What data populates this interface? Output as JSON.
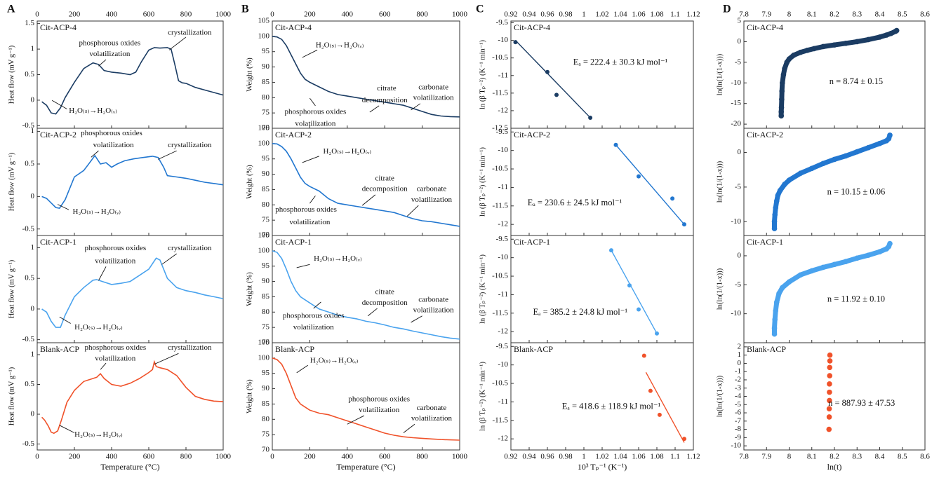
{
  "panel_labels": [
    "A",
    "B",
    "C",
    "D"
  ],
  "chart_data": [
    {
      "type": "line",
      "title": "Cit-ACP-4",
      "ylabel": "Heat flow (mV g⁻¹)",
      "color": "#1b3c63",
      "xlim": [
        0,
        1000
      ],
      "xticks": [
        0,
        200,
        400,
        600,
        800,
        1000
      ],
      "ylim": [
        -0.55,
        1.55
      ],
      "yticks": [
        -0.5,
        0,
        0.5,
        1,
        1.5
      ],
      "x": [
        25,
        50,
        75,
        100,
        125,
        150,
        200,
        250,
        300,
        330,
        360,
        400,
        450,
        500,
        530,
        560,
        600,
        630,
        660,
        700,
        720,
        740,
        760,
        780,
        800,
        850,
        900,
        950,
        1000
      ],
      "y": [
        -0.03,
        -0.1,
        -0.25,
        -0.27,
        -0.15,
        0.05,
        0.35,
        0.62,
        0.73,
        0.7,
        0.58,
        0.55,
        0.53,
        0.5,
        0.55,
        0.75,
        0.98,
        1.03,
        1.02,
        1.03,
        1.0,
        0.7,
        0.38,
        0.34,
        0.33,
        0.25,
        0.2,
        0.15,
        0.1
      ],
      "annotations": [
        "crystallization",
        "phosphorous oxides",
        "volatilization",
        "H₂O₍ₛ₎→H₂O₍ᵥ₎"
      ]
    },
    {
      "type": "line",
      "title": "Cit-ACP-2",
      "ylabel": "Heat flow (mV g⁻¹)",
      "color": "#2277d0",
      "xlim": [
        0,
        1000
      ],
      "xticks": [
        0,
        200,
        400,
        600,
        800,
        1000
      ],
      "ylim": [
        -0.6,
        1.05
      ],
      "yticks": [
        -0.5,
        0,
        0.5,
        1
      ],
      "x": [
        25,
        50,
        75,
        100,
        120,
        150,
        200,
        250,
        290,
        310,
        340,
        370,
        400,
        430,
        470,
        520,
        570,
        620,
        650,
        680,
        700,
        750,
        800,
        850,
        900,
        950,
        1000
      ],
      "y": [
        0,
        -0.03,
        -0.1,
        -0.17,
        -0.18,
        -0.05,
        0.3,
        0.4,
        0.55,
        0.63,
        0.5,
        0.52,
        0.45,
        0.5,
        0.55,
        0.58,
        0.6,
        0.62,
        0.6,
        0.45,
        0.32,
        0.3,
        0.28,
        0.25,
        0.22,
        0.2,
        0.18
      ],
      "annotations": [
        "phosphorous oxides",
        "volatilization",
        "crystallization",
        "H₂O₍ₛ₎→H₂O₍ᵥ₎"
      ]
    },
    {
      "type": "line",
      "title": "Cit-ACP-1",
      "ylabel": "Heat flow (mV g⁻¹)",
      "color": "#4aa3ee",
      "xlim": [
        0,
        1000
      ],
      "xticks": [
        0,
        200,
        400,
        600,
        800,
        1000
      ],
      "ylim": [
        -0.55,
        1.2
      ],
      "yticks": [
        -0.5,
        0,
        0.5,
        1
      ],
      "x": [
        25,
        50,
        75,
        100,
        125,
        150,
        200,
        250,
        300,
        320,
        350,
        400,
        450,
        500,
        550,
        600,
        640,
        660,
        700,
        750,
        800,
        850,
        900,
        950,
        1000
      ],
      "y": [
        0,
        -0.05,
        -0.2,
        -0.3,
        -0.3,
        -0.1,
        0.2,
        0.35,
        0.47,
        0.48,
        0.45,
        0.4,
        0.42,
        0.45,
        0.55,
        0.65,
        0.83,
        0.8,
        0.5,
        0.35,
        0.3,
        0.27,
        0.23,
        0.2,
        0.17
      ],
      "annotations": [
        "phosphorous oxides",
        "volatilization",
        "crystallization",
        "H₂O₍ₛ₎→H₂O₍ᵥ₎"
      ]
    },
    {
      "type": "line",
      "title": "Blank-ACP",
      "ylabel": "Heat flow (mV g⁻¹)",
      "xlabel": "Temperature (°C)",
      "color": "#f0522a",
      "xlim": [
        0,
        1000
      ],
      "xticks": [
        0,
        200,
        400,
        600,
        800,
        1000
      ],
      "ylim": [
        -0.6,
        1.2
      ],
      "yticks": [
        -0.5,
        0,
        0.5,
        1
      ],
      "x": [
        25,
        40,
        60,
        75,
        90,
        110,
        130,
        160,
        200,
        250,
        300,
        320,
        340,
        360,
        400,
        450,
        500,
        550,
        600,
        620,
        630,
        640,
        660,
        700,
        750,
        800,
        850,
        900,
        950,
        1000
      ],
      "y": [
        -0.05,
        -0.1,
        -0.2,
        -0.3,
        -0.32,
        -0.28,
        -0.1,
        0.2,
        0.4,
        0.55,
        0.6,
        0.62,
        0.68,
        0.6,
        0.5,
        0.47,
        0.52,
        0.6,
        0.7,
        0.75,
        0.88,
        0.8,
        0.78,
        0.75,
        0.65,
        0.45,
        0.3,
        0.25,
        0.22,
        0.21
      ],
      "annotations": [
        "phosphorous oxides",
        "volatilization",
        "crystallization",
        "H₂O₍ₛ₎→H₂O₍ᵥ₎"
      ]
    },
    {
      "type": "line",
      "title": "Cit-ACP-4",
      "ylabel": "Weight (%)",
      "color": "#1b3c63",
      "xlim": [
        0,
        1000
      ],
      "xticks": [
        0,
        200,
        400,
        600,
        800,
        1000
      ],
      "ylim": [
        70,
        105
      ],
      "yticks": [
        70,
        75,
        80,
        85,
        90,
        95,
        100,
        105
      ],
      "x": [
        0,
        25,
        50,
        75,
        100,
        125,
        150,
        175,
        200,
        250,
        300,
        350,
        400,
        450,
        500,
        550,
        600,
        650,
        700,
        750,
        800,
        850,
        900,
        950,
        1000
      ],
      "y": [
        100,
        99.8,
        99,
        97,
        94,
        91,
        88,
        86,
        85,
        83.5,
        82,
        81,
        80.5,
        80,
        79.5,
        79,
        78.5,
        78,
        77.5,
        76.5,
        75.5,
        74.5,
        74,
        73.8,
        73.7
      ],
      "annotations": [
        "H₂O₍ₛ₎→H₂O₍ᵥ₎",
        "citrate",
        "decomposition",
        "carbonate",
        "volatilization",
        "phosphorous oxides",
        "volatilization"
      ]
    },
    {
      "type": "line",
      "title": "Cit-ACP-2",
      "ylabel": "Weight (%)",
      "color": "#2277d0",
      "xlim": [
        0,
        1000
      ],
      "xticks": [
        0,
        200,
        400,
        600,
        800,
        1000
      ],
      "ylim": [
        70,
        105
      ],
      "yticks": [
        70,
        75,
        80,
        85,
        90,
        95,
        100,
        105
      ],
      "x": [
        0,
        25,
        50,
        75,
        100,
        125,
        150,
        175,
        200,
        250,
        300,
        350,
        400,
        450,
        500,
        550,
        600,
        650,
        700,
        750,
        800,
        850,
        900,
        950,
        1000
      ],
      "y": [
        100,
        99.9,
        99,
        97.5,
        95,
        92,
        89,
        87,
        86,
        84.5,
        82,
        80.5,
        80,
        79.5,
        79,
        78.5,
        78,
        77.5,
        76.5,
        75.5,
        74.8,
        74.5,
        74,
        73.5,
        73
      ],
      "annotations": [
        "H₂O₍ₛ₎→H₂O₍ᵥ₎",
        "citrate",
        "decomposition",
        "carbonate",
        "volatilization",
        "phosphorous oxides",
        "volatilization"
      ]
    },
    {
      "type": "line",
      "title": "Cit-ACP-1",
      "ylabel": "Weight (%)",
      "color": "#4aa3ee",
      "xlim": [
        0,
        1000
      ],
      "xticks": [
        0,
        200,
        400,
        600,
        800,
        1000
      ],
      "ylim": [
        70,
        105
      ],
      "yticks": [
        70,
        75,
        80,
        85,
        90,
        95,
        100,
        105
      ],
      "x": [
        0,
        25,
        50,
        75,
        100,
        125,
        150,
        175,
        200,
        250,
        300,
        350,
        400,
        450,
        500,
        550,
        600,
        650,
        700,
        750,
        800,
        850,
        900,
        950,
        1000
      ],
      "y": [
        100,
        99.5,
        97.5,
        94,
        90,
        87,
        85,
        84,
        83,
        81,
        80,
        79,
        78.3,
        77.8,
        77,
        76.5,
        75.8,
        75,
        74.5,
        73.8,
        73.2,
        72.6,
        72,
        71.5,
        71.2
      ],
      "annotations": [
        "H₂O₍ₛ₎→H₂O₍ᵥ₎",
        "citrate",
        "decomposition",
        "carbonate",
        "volatilization",
        "phosphorous oxides",
        "volatilization"
      ]
    },
    {
      "type": "line",
      "title": "Blank-ACP",
      "ylabel": "Weight (%)",
      "xlabel": "Temperature (°C)",
      "color": "#f0522a",
      "xlim": [
        0,
        1000
      ],
      "xticks": [
        0,
        200,
        400,
        600,
        800,
        1000
      ],
      "ylim": [
        70,
        105
      ],
      "yticks": [
        70,
        75,
        80,
        85,
        90,
        95,
        100,
        105
      ],
      "x": [
        0,
        25,
        50,
        75,
        100,
        125,
        150,
        175,
        200,
        250,
        300,
        350,
        400,
        450,
        500,
        550,
        600,
        650,
        700,
        750,
        800,
        850,
        900,
        950,
        1000
      ],
      "y": [
        100,
        99.5,
        98,
        95,
        91,
        87,
        85,
        84,
        83,
        82,
        81.5,
        80.5,
        79.5,
        78.5,
        77.5,
        76.5,
        75.5,
        74.8,
        74.3,
        74,
        73.8,
        73.6,
        73.4,
        73.3,
        73.2
      ],
      "annotations": [
        "H₂O₍ₛ₎→H₂O₍ᵥ₎",
        "phosphorous oxides",
        "volatilization",
        "carbonate",
        "volatilization"
      ]
    },
    {
      "type": "scatter",
      "title": "Cit-ACP-4",
      "ylabel": "ln (β Tₚ⁻²) (K⁻¹ min⁻¹)",
      "color": "#1b3c63",
      "xlim": [
        0.92,
        1.12
      ],
      "xticks": [
        0.92,
        0.94,
        0.96,
        0.98,
        1,
        1.02,
        1.04,
        1.06,
        1.08,
        1.1,
        1.12
      ],
      "ylim": [
        -12.5,
        -9.45
      ],
      "yticks": [
        -9.5,
        -10,
        -10.5,
        -11,
        -11.5,
        -12,
        -12.5
      ],
      "x": [
        0.925,
        0.96,
        0.97,
        1.007
      ],
      "y": [
        -10.05,
        -10.9,
        -11.55,
        -12.2
      ],
      "fit": {
        "x": [
          0.925,
          1.007
        ],
        "y": [
          -10.0,
          -12.2
        ]
      },
      "annotations": [
        "Eₐ = 222.4 ± 30.3 kJ mol⁻¹"
      ]
    },
    {
      "type": "scatter",
      "title": "Cit-ACP-2",
      "ylabel": "ln (β Tₚ⁻²) (K⁻¹ min⁻¹)",
      "color": "#2277d0",
      "xlim": [
        0.92,
        1.12
      ],
      "xticks": [
        0.92,
        0.94,
        0.96,
        0.98,
        1,
        1.02,
        1.04,
        1.06,
        1.08,
        1.1,
        1.12
      ],
      "ylim": [
        -12.3,
        -9.4
      ],
      "yticks": [
        -9.5,
        -10,
        -10.5,
        -11,
        -11.5,
        -12
      ],
      "x": [
        1.035,
        1.06,
        1.097,
        1.11
      ],
      "y": [
        -9.85,
        -10.7,
        -11.3,
        -12.0
      ],
      "fit": {
        "x": [
          1.035,
          1.11
        ],
        "y": [
          -9.85,
          -12.0
        ]
      },
      "annotations": [
        "Eₐ = 230.6 ± 24.5 kJ mol⁻¹"
      ]
    },
    {
      "type": "scatter",
      "title": "Cit-ACP-1",
      "ylabel": "ln (β Tₚ⁻²) (K⁻¹ min⁻¹)",
      "color": "#4aa3ee",
      "xlim": [
        0.92,
        1.12
      ],
      "xticks": [
        0.92,
        0.94,
        0.96,
        0.98,
        1,
        1.02,
        1.04,
        1.06,
        1.08,
        1.1,
        1.12
      ],
      "ylim": [
        -12.3,
        -9.4
      ],
      "yticks": [
        -9.5,
        -10,
        -10.5,
        -11,
        -11.5,
        -12
      ],
      "x": [
        1.03,
        1.05,
        1.06,
        1.08
      ],
      "y": [
        -9.8,
        -10.75,
        -11.4,
        -12.05
      ],
      "fit": {
        "x": [
          1.03,
          1.08
        ],
        "y": [
          -9.8,
          -12.05
        ]
      },
      "annotations": [
        "Eₐ = 385.2 ± 24.8 kJ mol⁻¹"
      ]
    },
    {
      "type": "scatter",
      "title": "Blank-ACP",
      "ylabel": "ln (β Tₚ⁻²) (K⁻¹ min⁻¹)",
      "xlabel": "10³ Tₚ⁻¹ (K⁻¹)",
      "color": "#f0522a",
      "xlim": [
        0.92,
        1.12
      ],
      "xticks": [
        0.92,
        0.94,
        0.96,
        0.98,
        1,
        1.02,
        1.04,
        1.06,
        1.08,
        1.1,
        1.12
      ],
      "ylim": [
        -12.3,
        -9.4
      ],
      "yticks": [
        -9.5,
        -10,
        -10.5,
        -11,
        -11.5,
        -12
      ],
      "x": [
        1.066,
        1.073,
        1.083,
        1.11
      ],
      "y": [
        -9.75,
        -10.7,
        -11.35,
        -12.0
      ],
      "fit": {
        "x": [
          1.068,
          1.11
        ],
        "y": [
          -10.2,
          -12.1
        ]
      },
      "annotations": [
        "Eₐ = 418.6 ± 118.9 kJ mol⁻¹"
      ]
    },
    {
      "type": "scatter",
      "title": "Cit-ACP-4",
      "ylabel": "ln(ln(1/(1-x)))",
      "color": "#1b3c63",
      "xlim": [
        7.8,
        8.6
      ],
      "xticks": [
        7.8,
        7.9,
        8,
        8.1,
        8.2,
        8.3,
        8.4,
        8.5,
        8.6
      ],
      "ylim": [
        -21,
        5
      ],
      "yticks": [
        -20,
        -15,
        -10,
        -5,
        0,
        5
      ],
      "x": [
        7.965,
        7.965,
        7.966,
        7.967,
        7.968,
        7.97,
        7.975,
        7.98,
        7.99,
        8.0,
        8.02,
        8.05,
        8.08,
        8.11,
        8.15,
        8.2,
        8.25,
        8.3,
        8.35,
        8.4,
        8.43,
        8.45,
        8.47,
        8.475
      ],
      "y": [
        -18,
        -17,
        -16,
        -14,
        -12,
        -10,
        -8,
        -6.5,
        -5,
        -4.2,
        -3.3,
        -2.6,
        -2.1,
        -1.7,
        -1.2,
        -0.8,
        -0.4,
        0,
        0.5,
        1.1,
        1.6,
        2.0,
        2.5,
        2.7
      ],
      "annotations": [
        "n = 8.74 ± 0.15"
      ]
    },
    {
      "type": "scatter",
      "title": "Cit-ACP-2",
      "ylabel": "ln(ln(1/(1-x)))",
      "color": "#2277d0",
      "xlim": [
        7.8,
        8.6
      ],
      "xticks": [
        7.8,
        7.9,
        8,
        8.1,
        8.2,
        8.3,
        8.4,
        8.5,
        8.6
      ],
      "ylim": [
        -12,
        3.5
      ],
      "yticks": [
        -10,
        -5,
        0
      ],
      "x": [
        7.935,
        7.935,
        7.937,
        7.94,
        7.945,
        7.95,
        7.96,
        7.98,
        8.0,
        8.05,
        8.1,
        8.15,
        8.2,
        8.25,
        8.3,
        8.35,
        8.4,
        8.43,
        8.44,
        8.445
      ],
      "y": [
        -11,
        -10,
        -9,
        -8,
        -7,
        -6.2,
        -5.5,
        -4.6,
        -4,
        -3,
        -2.3,
        -1.6,
        -1,
        -0.5,
        0.1,
        0.7,
        1.3,
        1.7,
        2.0,
        2.5
      ],
      "annotations": [
        "n = 10.15 ± 0.06"
      ]
    },
    {
      "type": "scatter",
      "title": "Cit-ACP-1",
      "ylabel": "ln(ln(1/(1-x)))",
      "color": "#4aa3ee",
      "xlim": [
        7.8,
        8.6
      ],
      "xticks": [
        7.8,
        7.9,
        8,
        8.1,
        8.2,
        8.3,
        8.4,
        8.5,
        8.6
      ],
      "ylim": [
        -15,
        3.5
      ],
      "yticks": [
        -10,
        -5,
        0
      ],
      "x": [
        7.935,
        7.935,
        7.937,
        7.94,
        7.945,
        7.955,
        7.97,
        8.0,
        8.05,
        8.1,
        8.15,
        8.2,
        8.25,
        8.3,
        8.35,
        8.4,
        8.43,
        8.44,
        8.445
      ],
      "y": [
        -13.5,
        -12.5,
        -11,
        -9.5,
        -8,
        -6.5,
        -5.5,
        -4.5,
        -3.3,
        -2.6,
        -2,
        -1.5,
        -1,
        -0.4,
        0.1,
        0.7,
        1.2,
        1.6,
        2.1
      ],
      "annotations": [
        "n = 11.92 ± 0.10"
      ]
    },
    {
      "type": "scatter",
      "title": "Blank-ACP",
      "ylabel": "ln(ln(1/(1-x)))",
      "xlabel": "ln(t)",
      "color": "#f0522a",
      "xlim": [
        7.8,
        8.6
      ],
      "xticks": [
        7.8,
        7.9,
        8,
        8.1,
        8.2,
        8.3,
        8.4,
        8.5,
        8.6
      ],
      "ylim": [
        -10.5,
        2.5
      ],
      "yticks": [
        -10,
        -9,
        -8,
        -7,
        -6,
        -5,
        -4,
        -3,
        -2,
        -1,
        0,
        1,
        2
      ],
      "x": [
        8.176,
        8.177,
        8.177,
        8.178,
        8.178,
        8.178,
        8.179,
        8.179,
        8.18,
        8.18
      ],
      "y": [
        -8,
        -6.5,
        -5.5,
        -4.5,
        -3.5,
        -2.5,
        -1.5,
        -0.5,
        0.3,
        1.0
      ],
      "annotations": [
        "n = 887.93 ± 47.53"
      ]
    }
  ]
}
